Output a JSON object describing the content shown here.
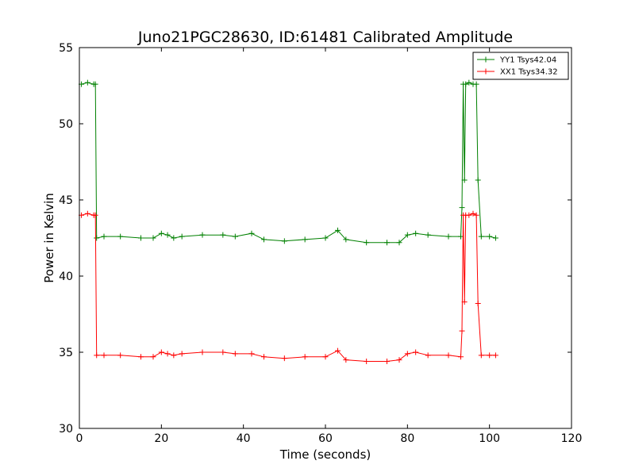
{
  "chart_data": {
    "type": "line",
    "title": "Juno21PGC28630, ID:61481 Calibrated Amplitude",
    "xlabel": "Time (seconds)",
    "ylabel": "Power in Kelvin",
    "xlim": [
      0,
      120
    ],
    "ylim": [
      30,
      55
    ],
    "xticks": [
      0,
      20,
      40,
      60,
      80,
      100,
      120
    ],
    "yticks": [
      30,
      35,
      40,
      45,
      50,
      55
    ],
    "grid": false,
    "legend_position": "top-right",
    "marker": "+",
    "series": [
      {
        "name": "YY1 Tsys42.04",
        "color": "#008000",
        "x": [
          0.5,
          2,
          3.5,
          3.9,
          4.2,
          6,
          10,
          15,
          18,
          20,
          21.5,
          23,
          25,
          30,
          35,
          38,
          42,
          45,
          50,
          55,
          60,
          63,
          65,
          70,
          75,
          78,
          80,
          82,
          85,
          90,
          93.0,
          93.3,
          93.6,
          93.9,
          94.2,
          95,
          96,
          96.8,
          97.2,
          98,
          100,
          101.5
        ],
        "y": [
          52.6,
          52.7,
          52.6,
          52.6,
          42.5,
          42.6,
          42.6,
          42.5,
          42.5,
          42.8,
          42.7,
          42.5,
          42.6,
          42.7,
          42.7,
          42.6,
          42.8,
          42.4,
          42.3,
          42.4,
          42.5,
          43.0,
          42.4,
          42.2,
          42.2,
          42.2,
          42.7,
          42.8,
          42.7,
          42.6,
          42.6,
          44.5,
          52.6,
          46.3,
          52.6,
          52.7,
          52.6,
          52.6,
          46.3,
          42.6,
          42.6,
          42.5
        ]
      },
      {
        "name": "XX1 Tsys34.32",
        "color": "#ff0000",
        "x": [
          0.5,
          2,
          3.5,
          3.9,
          4.2,
          6,
          10,
          15,
          18,
          20,
          21.5,
          23,
          25,
          30,
          35,
          38,
          42,
          45,
          50,
          55,
          60,
          63,
          65,
          70,
          75,
          78,
          80,
          82,
          85,
          90,
          93.0,
          93.3,
          93.6,
          93.9,
          94.2,
          95,
          96,
          96.8,
          97.2,
          98,
          100,
          101.5
        ],
        "y": [
          44.0,
          44.1,
          44.0,
          44.0,
          34.8,
          34.8,
          34.8,
          34.7,
          34.7,
          35.0,
          34.9,
          34.8,
          34.9,
          35.0,
          35.0,
          34.9,
          34.9,
          34.7,
          34.6,
          34.7,
          34.7,
          35.1,
          34.5,
          34.4,
          34.4,
          34.5,
          34.9,
          35.0,
          34.8,
          34.8,
          34.7,
          36.4,
          44.0,
          38.3,
          44.0,
          44.0,
          44.1,
          44.0,
          38.2,
          34.8,
          34.8,
          34.8
        ]
      }
    ]
  }
}
